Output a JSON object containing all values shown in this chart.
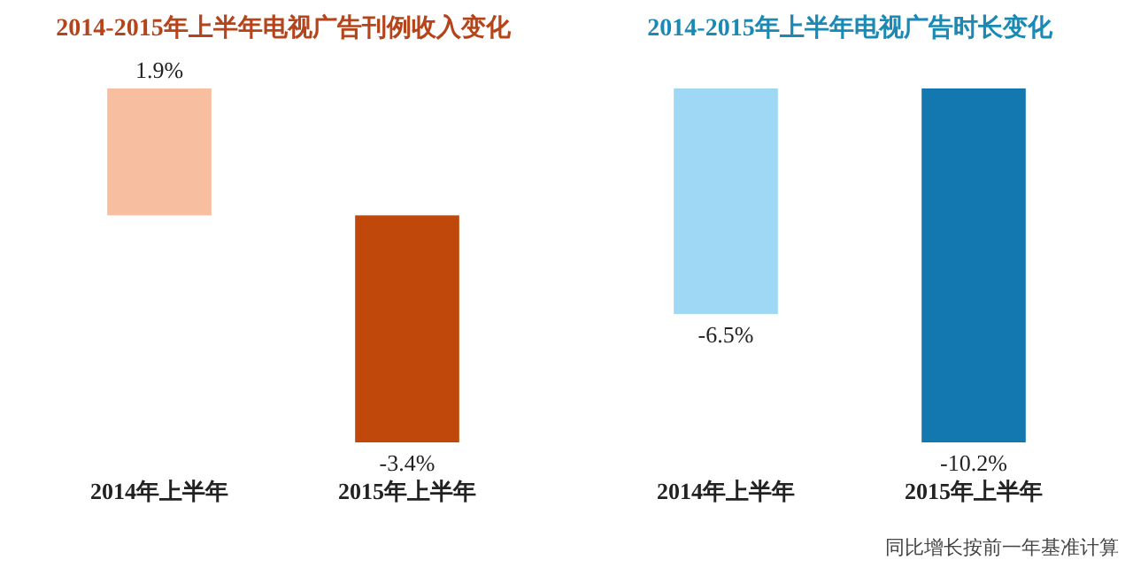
{
  "chart_data": [
    {
      "type": "bar",
      "title": "2014-2015年上半年电视广告刊例收入变化",
      "categories": [
        "2014年上半年",
        "2015年上半年"
      ],
      "values": [
        1.9,
        -3.4
      ],
      "colors": [
        "#f7bf9f",
        "#c0480a"
      ],
      "value_labels": [
        "1.9%",
        "-3.4%"
      ]
    },
    {
      "type": "bar",
      "title": "2014-2015年上半年电视广告时长变化",
      "categories": [
        "2014年上半年",
        "2015年上半年"
      ],
      "values": [
        -6.5,
        -10.2
      ],
      "colors": [
        "#9fd8f5",
        "#1478b0"
      ],
      "value_labels": [
        "-6.5%",
        "-10.2%"
      ],
      "annotations": [
        "同比增长按前一年基准计算"
      ]
    }
  ]
}
